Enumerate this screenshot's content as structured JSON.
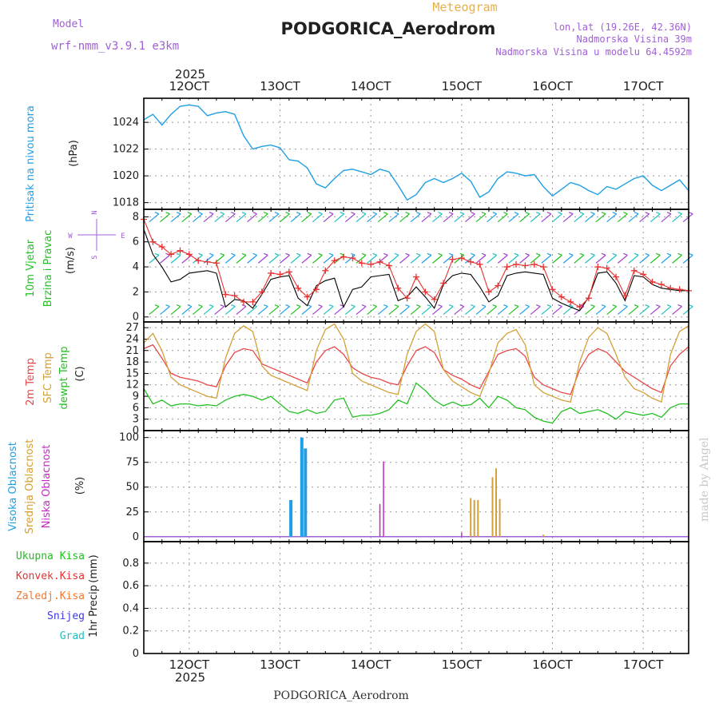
{
  "chart_data": [
    {
      "type": "line",
      "title": "Meteogram",
      "station": "PODGORICA_Aerodrom",
      "model_label": "Model",
      "model": "wrf-nmm_v3.9.1 e3km",
      "location": "lon,lat (19.26E, 42.36N)",
      "elevation": "Nadmorska Visina 39m",
      "model_elevation": "Nadmorska Visina u modelu 64.4592m",
      "footer": "PODGORICA_Aerodrom",
      "credit": "made by Angel",
      "x_ticks": [
        "12OCT",
        "13OCT",
        "14OCT",
        "15OCT",
        "16OCT",
        "17OCT"
      ],
      "x_year": "2025"
    },
    {
      "type": "line",
      "panel": "pressure",
      "ylabel": "Pritisak na nivou mora",
      "unit": "(hPa)",
      "ylim": [
        1017.5,
        1025.8
      ],
      "yticks": [
        1018,
        1020,
        1022,
        1024
      ],
      "color": "#1e9fe6",
      "x": [
        0,
        0.5,
        1,
        1.5,
        2,
        2.5,
        3,
        3.5,
        4,
        4.5,
        5,
        5.5,
        6,
        6.5,
        7,
        7.5,
        8,
        8.5,
        9,
        9.5,
        10,
        10.5,
        11,
        11.5,
        12,
        12.5,
        13,
        13.5,
        14,
        14.5,
        15,
        15.5,
        16,
        16.5,
        17,
        17.5,
        18,
        18.5,
        19,
        19.5,
        20,
        20.5,
        21,
        21.5,
        22,
        22.5,
        23,
        23.5,
        24,
        24.5,
        25,
        25.5,
        26,
        26.5,
        27,
        27.5,
        28,
        28.5,
        29,
        29.5,
        30
      ],
      "values": [
        1024.2,
        1024.6,
        1023.8,
        1024.6,
        1025.2,
        1025.3,
        1025.2,
        1024.5,
        1024.7,
        1024.8,
        1024.6,
        1023.0,
        1022.0,
        1022.2,
        1022.3,
        1022.1,
        1021.2,
        1021.1,
        1020.6,
        1019.4,
        1019.1,
        1019.8,
        1020.4,
        1020.5,
        1020.3,
        1020.1,
        1020.5,
        1020.3,
        1019.3,
        1018.2,
        1018.6,
        1019.5,
        1019.8,
        1019.5,
        1019.8,
        1020.2,
        1019.6,
        1018.4,
        1018.8,
        1019.8,
        1020.3,
        1020.2,
        1020.0,
        1020.1,
        1019.2,
        1018.5,
        1019.0,
        1019.5,
        1019.3,
        1018.9,
        1018.6,
        1019.2,
        1019.0,
        1019.4,
        1019.8,
        1020.0,
        1019.3,
        1018.9,
        1019.3,
        1019.7,
        1018.9
      ]
    },
    {
      "type": "line",
      "panel": "wind",
      "ylabel_1": "10m Vjetar",
      "ylabel_2": "Brzina i Pravac",
      "unit": "(m/s)",
      "compass": [
        "N",
        "W",
        "E",
        "S"
      ],
      "ylim": [
        -0.4,
        8.6
      ],
      "yticks": [
        0,
        2,
        4,
        6,
        8
      ],
      "series": [
        {
          "name": "speed",
          "color": "#000000",
          "x": [
            0,
            0.5,
            1,
            1.5,
            2,
            2.5,
            3,
            3.5,
            4,
            4.5,
            5,
            5.5,
            6,
            6.5,
            7,
            7.5,
            8,
            8.5,
            9,
            9.5,
            10,
            10.5,
            11,
            11.5,
            12,
            12.5,
            13,
            13.5,
            14,
            14.5,
            15,
            15.5,
            16,
            16.5,
            17,
            17.5,
            18,
            18.5,
            19,
            19.5,
            20,
            20.5,
            21,
            21.5,
            22,
            22.5,
            23,
            23.5,
            24,
            24.5,
            25,
            25.5,
            26,
            26.5,
            27,
            27.5,
            28,
            28.5,
            29,
            29.5,
            30
          ],
          "values": [
            7.0,
            5.0,
            4.0,
            2.8,
            3.0,
            3.5,
            3.6,
            3.7,
            3.5,
            0.8,
            1.4,
            1.3,
            0.7,
            1.8,
            3.0,
            3.2,
            3.3,
            1.5,
            0.9,
            2.5,
            2.9,
            3.1,
            0.8,
            2.2,
            2.4,
            3.2,
            3.3,
            3.4,
            1.3,
            1.6,
            2.4,
            1.6,
            0.7,
            2.6,
            3.3,
            3.5,
            3.4,
            2.4,
            1.2,
            1.7,
            3.3,
            3.5,
            3.6,
            3.5,
            3.4,
            1.5,
            1.1,
            0.8,
            0.5,
            1.6,
            3.5,
            3.6,
            2.7,
            1.3,
            3.3,
            3.2,
            2.6,
            2.3,
            2.2,
            2.1,
            2.1
          ]
        },
        {
          "name": "gust",
          "color": "#e83232",
          "x": [
            0,
            0.5,
            1,
            1.5,
            2,
            2.5,
            3,
            3.5,
            4,
            4.5,
            5,
            5.5,
            6,
            6.5,
            7,
            7.5,
            8,
            8.5,
            9,
            9.5,
            10,
            10.5,
            11,
            11.5,
            12,
            12.5,
            13,
            13.5,
            14,
            14.5,
            15,
            15.5,
            16,
            16.5,
            17,
            17.5,
            18,
            18.5,
            19,
            19.5,
            20,
            20.5,
            21,
            21.5,
            22,
            22.5,
            23,
            23.5,
            24,
            24.5,
            25,
            25.5,
            26,
            26.5,
            27,
            27.5,
            28,
            28.5,
            29,
            29.5,
            30
          ],
          "values": [
            7.8,
            6.0,
            5.6,
            5.0,
            5.3,
            5.0,
            4.5,
            4.4,
            4.3,
            1.8,
            1.7,
            1.2,
            1.2,
            2.0,
            3.5,
            3.4,
            3.6,
            2.3,
            1.6,
            2.2,
            3.7,
            4.5,
            4.8,
            4.7,
            4.3,
            4.2,
            4.4,
            4.1,
            2.3,
            1.5,
            3.2,
            2.0,
            1.4,
            2.7,
            4.6,
            4.7,
            4.4,
            4.2,
            2.0,
            2.5,
            4.0,
            4.2,
            4.1,
            4.2,
            4.0,
            2.2,
            1.6,
            1.2,
            0.8,
            1.5,
            4.0,
            3.9,
            3.2,
            1.7,
            3.7,
            3.4,
            2.8,
            2.6,
            2.3,
            2.2,
            2.1
          ]
        }
      ]
    },
    {
      "type": "line",
      "panel": "temperature",
      "ylabel_1": "2m Temp",
      "ylabel_2": "SFC Temp",
      "ylabel_3": "dewpt Temp",
      "unit": "(C)",
      "ylim": [
        0,
        28.5
      ],
      "yticks": [
        0,
        3,
        6,
        9,
        12,
        15,
        18,
        21,
        24,
        27
      ],
      "series": [
        {
          "name": "2m Temp",
          "color": "#e84848",
          "x": [
            0,
            0.5,
            1,
            1.5,
            2,
            2.5,
            3,
            3.5,
            4,
            4.5,
            5,
            5.5,
            6,
            6.5,
            7,
            7.5,
            8,
            8.5,
            9,
            9.5,
            10,
            10.5,
            11,
            11.5,
            12,
            12.5,
            13,
            13.5,
            14,
            14.5,
            15,
            15.5,
            16,
            16.5,
            17,
            17.5,
            18,
            18.5,
            19,
            19.5,
            20,
            20.5,
            21,
            21.5,
            22,
            22.5,
            23,
            23.5,
            24,
            24.5,
            25,
            25.5,
            26,
            26.5,
            27,
            27.5,
            28,
            28.5,
            29,
            29.5,
            30
          ],
          "values": [
            21.5,
            22.5,
            19.0,
            15.0,
            14.0,
            13.5,
            13.0,
            12.0,
            11.5,
            17.0,
            20.5,
            21.5,
            21.0,
            17.5,
            16.5,
            15.5,
            14.5,
            13.5,
            12.5,
            18.0,
            21.0,
            22.0,
            20.0,
            16.5,
            15.0,
            14.0,
            13.5,
            12.5,
            12.0,
            17.0,
            21.0,
            22.0,
            20.5,
            16.0,
            14.5,
            13.5,
            12.0,
            11.0,
            15.5,
            20.0,
            21.0,
            21.5,
            19.5,
            14.0,
            12.0,
            11.0,
            10.0,
            9.5,
            16.0,
            20.0,
            21.5,
            20.5,
            18.0,
            15.5,
            14.0,
            12.5,
            11.0,
            10.0,
            17.0,
            20.0,
            22.0
          ]
        },
        {
          "name": "SFC Temp",
          "color": "#d4a038",
          "x": [
            0,
            0.5,
            1,
            1.5,
            2,
            2.5,
            3,
            3.5,
            4,
            4.5,
            5,
            5.5,
            6,
            6.5,
            7,
            7.5,
            8,
            8.5,
            9,
            9.5,
            10,
            10.5,
            11,
            11.5,
            12,
            12.5,
            13,
            13.5,
            14,
            14.5,
            15,
            15.5,
            16,
            16.5,
            17,
            17.5,
            18,
            18.5,
            19,
            19.5,
            20,
            20.5,
            21,
            21.5,
            22,
            22.5,
            23,
            23.5,
            24,
            24.5,
            25,
            25.5,
            26,
            26.5,
            27,
            27.5,
            28,
            28.5,
            29,
            29.5,
            30
          ],
          "values": [
            23.0,
            25.5,
            21.0,
            14.0,
            12.0,
            11.0,
            10.0,
            9.0,
            8.5,
            19.0,
            25.5,
            27.5,
            26.0,
            17.0,
            14.5,
            13.5,
            12.5,
            11.5,
            10.5,
            21.0,
            26.5,
            28.0,
            24.0,
            15.0,
            13.0,
            12.0,
            11.0,
            10.0,
            9.5,
            20.0,
            26.0,
            28.0,
            26.0,
            16.0,
            13.0,
            11.5,
            10.0,
            9.0,
            15.0,
            23.0,
            25.5,
            26.5,
            22.5,
            12.0,
            10.0,
            9.0,
            8.0,
            7.5,
            18.0,
            24.5,
            27.0,
            25.5,
            20.0,
            14.0,
            11.0,
            10.0,
            8.5,
            7.5,
            20.0,
            26.0,
            27.5
          ]
        },
        {
          "name": "dewpt Temp",
          "color": "#22c022",
          "x": [
            0,
            0.5,
            1,
            1.5,
            2,
            2.5,
            3,
            3.5,
            4,
            4.5,
            5,
            5.5,
            6,
            6.5,
            7,
            7.5,
            8,
            8.5,
            9,
            9.5,
            10,
            10.5,
            11,
            11.5,
            12,
            12.5,
            13,
            13.5,
            14,
            14.5,
            15,
            15.5,
            16,
            16.5,
            17,
            17.5,
            18,
            18.5,
            19,
            19.5,
            20,
            20.5,
            21,
            21.5,
            22,
            22.5,
            23,
            23.5,
            24,
            24.5,
            25,
            25.5,
            26,
            26.5,
            27,
            27.5,
            28,
            28.5,
            29,
            29.5,
            30
          ],
          "values": [
            11.0,
            7.0,
            8.0,
            6.5,
            7.0,
            7.0,
            6.5,
            6.8,
            6.5,
            8.0,
            9.0,
            9.5,
            9.0,
            8.0,
            9.0,
            7.0,
            5.0,
            4.5,
            5.5,
            4.5,
            5.0,
            8.0,
            8.5,
            3.5,
            4.0,
            4.0,
            4.5,
            5.5,
            8.0,
            7.0,
            12.5,
            10.5,
            8.0,
            6.5,
            7.5,
            6.5,
            6.8,
            8.5,
            6.0,
            9.0,
            8.0,
            6.0,
            5.5,
            3.5,
            2.5,
            2.0,
            5.0,
            6.0,
            4.5,
            5.0,
            5.5,
            4.5,
            3.0,
            5.0,
            4.5,
            4.0,
            4.5,
            3.5,
            6.0,
            7.0,
            7.0
          ]
        }
      ]
    },
    {
      "type": "bar",
      "panel": "cloud",
      "ylabel_1": "Visoka Oblacnost",
      "ylabel_2": "Srednja Oblacnost",
      "ylabel_3": "Niska Oblacnost",
      "unit": "(%)",
      "ylim": [
        -5,
        107
      ],
      "yticks": [
        0,
        25,
        50,
        75,
        100
      ],
      "series": [
        {
          "name": "Visoka Oblacnost",
          "color": "#1e9fe6",
          "x": [
            8.1,
            8.7,
            8.9
          ],
          "values": [
            37,
            100,
            89
          ]
        },
        {
          "name": "Srednja Oblacnost",
          "color": "#d4a038",
          "x": [
            18.0,
            18.2,
            18.4,
            19.2,
            19.4,
            19.6,
            22.0
          ],
          "values": [
            39,
            37,
            37,
            60,
            69,
            38,
            2
          ]
        },
        {
          "name": "Niska Oblacnost",
          "color": "#c828c8",
          "x": [
            13.0,
            13.2,
            17.5
          ],
          "values": [
            33,
            76,
            4
          ]
        }
      ]
    },
    {
      "type": "bar",
      "panel": "precip",
      "ylabel": "1hr Precip",
      "unit": "(mm)",
      "ylim": [
        0,
        0.99
      ],
      "yticks": [
        0,
        0.2,
        0.4,
        0.6,
        0.8
      ],
      "legend": [
        {
          "name": "Ukupna Kisa",
          "color": "#22c022"
        },
        {
          "name": "Konvek.Kisa",
          "color": "#e83232"
        },
        {
          "name": "Zaledj.Kisa",
          "color": "#f07830"
        },
        {
          "name": "Snijeg",
          "color": "#4038e0"
        },
        {
          "name": "Grad",
          "color": "#20c0c0"
        }
      ],
      "series": []
    }
  ]
}
